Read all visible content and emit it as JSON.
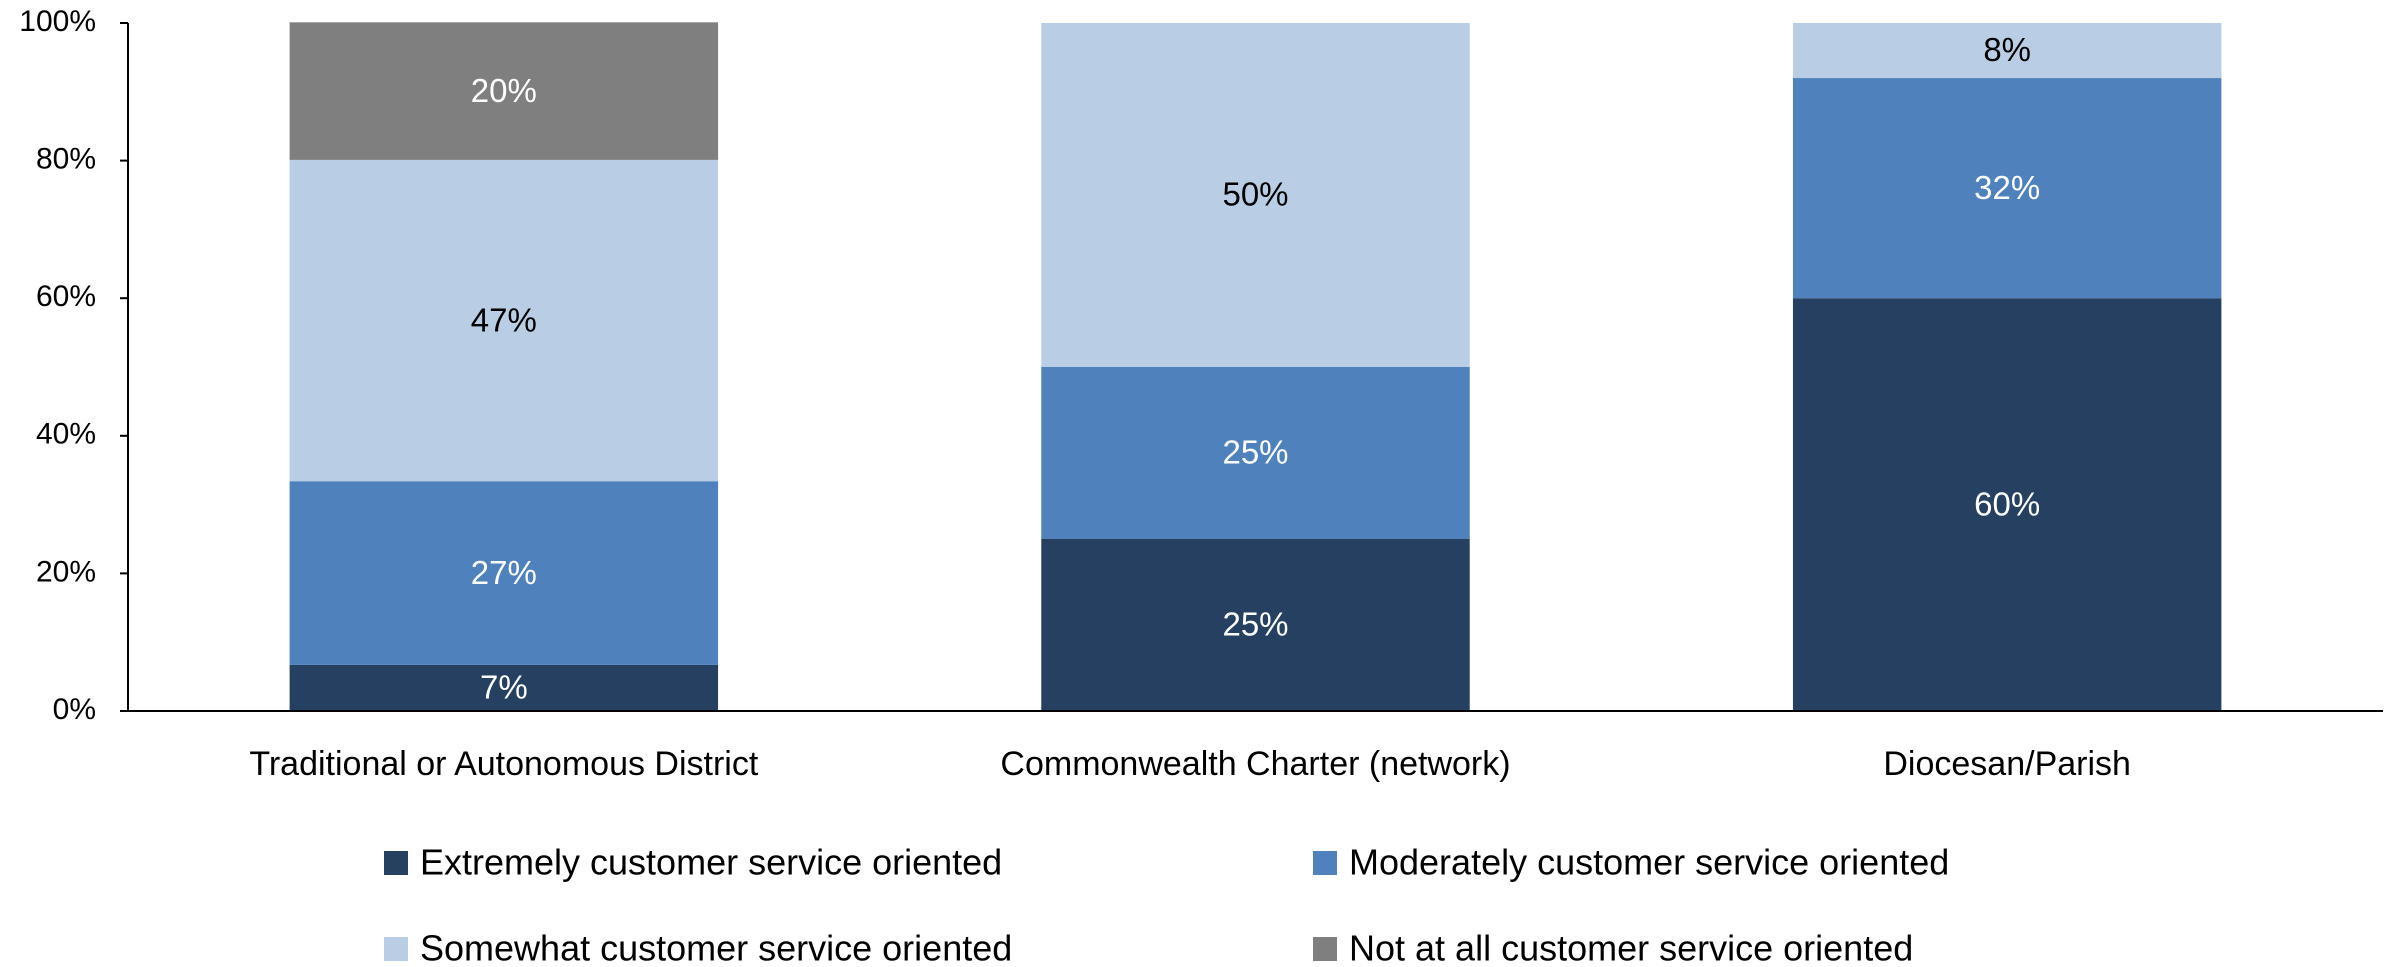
{
  "chart_data": {
    "type": "stacked_bar",
    "categories": [
      "Traditional or Autonomous District",
      "Commonwealth Charter (network)",
      "Diocesan/Parish"
    ],
    "series": [
      {
        "name": "Extremely customer service oriented",
        "color": "#264061",
        "values": [
          6.7,
          25,
          60
        ],
        "value_labels": [
          "7%",
          "25%",
          "60%"
        ]
      },
      {
        "name": "Moderately customer service oriented",
        "color": "#4f81bd",
        "values": [
          26.7,
          25,
          32
        ],
        "value_labels": [
          "27%",
          "25%",
          "32%"
        ]
      },
      {
        "name": "Somewhat customer service oriented",
        "color": "#b9cde5",
        "values": [
          46.7,
          50,
          8
        ],
        "value_labels": [
          "47%",
          "50%",
          "8%"
        ]
      },
      {
        "name": "Not at all customer service oriented",
        "color": "#7f7f7f",
        "values": [
          20,
          0,
          0
        ],
        "value_labels": [
          "20%",
          null,
          null
        ]
      }
    ],
    "ylim": [
      0,
      100
    ],
    "yticks": [
      {
        "value": 0,
        "label": "0%"
      },
      {
        "value": 20,
        "label": "20%"
      },
      {
        "value": 40,
        "label": "40%"
      },
      {
        "value": 60,
        "label": "60%"
      },
      {
        "value": 80,
        "label": "80%"
      },
      {
        "value": 100,
        "label": "100%"
      }
    ],
    "legend": "bottom"
  }
}
